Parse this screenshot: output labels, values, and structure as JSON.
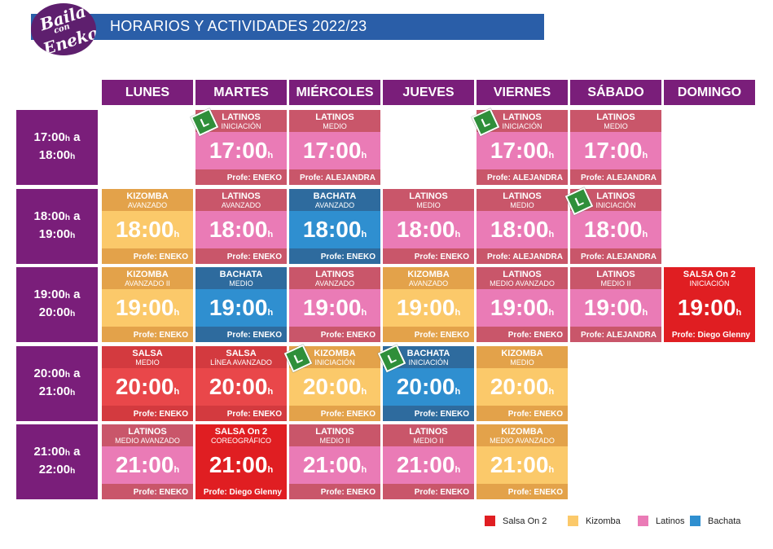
{
  "header": {
    "title": "HORARIOS Y ACTIVIDADES 2022/23",
    "logo_text": [
      "Baila",
      "con",
      "Eneko"
    ]
  },
  "days": [
    "LUNES",
    "MARTES",
    "MIÉRCOLES",
    "JUEVES",
    "VIERNES",
    "SÁBADO",
    "DOMINGO"
  ],
  "time_slots": [
    {
      "start": "17:00",
      "end": "18:00"
    },
    {
      "start": "18:00",
      "end": "19:00"
    },
    {
      "start": "19:00",
      "end": "20:00"
    },
    {
      "start": "20:00",
      "end": "21:00"
    },
    {
      "start": "21:00",
      "end": "22:00"
    }
  ],
  "labels": {
    "hour_suffix": "h",
    "a": "a"
  },
  "colors": {
    "latinos": {
      "top": "#c9566a",
      "mid": "#ea7bb6",
      "bot": "#c9566a"
    },
    "kizomba": {
      "top": "#e3a24a",
      "mid": "#fbc96a",
      "bot": "#e3a24a"
    },
    "bachata": {
      "top": "#2e6b9e",
      "mid": "#2f8fd0",
      "bot": "#2e6b9e"
    },
    "salsa": {
      "top": "#d33a3f",
      "mid": "#e9474a",
      "bot": "#d33a3f"
    },
    "salsa_on2": {
      "top": "#e01e22",
      "mid": "#e01e22",
      "bot": "#e01e22"
    },
    "header_bar": "#2a5ea8",
    "day_header": "#7a1e7a"
  },
  "classes": [
    {
      "day": 1,
      "slot": 0,
      "style": "latinos",
      "name": "LATINOS",
      "level": "INICIACIÓN",
      "time": "17:00",
      "prof": "Profe: ENEKO",
      "beginner": true
    },
    {
      "day": 2,
      "slot": 0,
      "style": "latinos",
      "name": "LATINOS",
      "level": "MEDIO",
      "time": "17:00",
      "prof": "Profe: ALEJANDRA",
      "beginner": false
    },
    {
      "day": 4,
      "slot": 0,
      "style": "latinos",
      "name": "LATINOS",
      "level": "INICIACIÓN",
      "time": "17:00",
      "prof": "Profe: ALEJANDRA",
      "beginner": true
    },
    {
      "day": 5,
      "slot": 0,
      "style": "latinos",
      "name": "LATINOS",
      "level": "MEDIO",
      "time": "17:00",
      "prof": "Profe: ALEJANDRA",
      "beginner": false
    },
    {
      "day": 0,
      "slot": 1,
      "style": "kizomba",
      "name": "KIZOMBA",
      "level": "AVANZADO",
      "time": "18:00",
      "prof": "Profe: ENEKO",
      "beginner": false
    },
    {
      "day": 1,
      "slot": 1,
      "style": "latinos",
      "name": "LATINOS",
      "level": "AVANZADO",
      "time": "18:00",
      "prof": "Profe: ENEKO",
      "beginner": false
    },
    {
      "day": 2,
      "slot": 1,
      "style": "bachata",
      "name": "BACHATA",
      "level": "AVANZADO",
      "time": "18:00",
      "prof": "Profe: ENEKO",
      "beginner": false
    },
    {
      "day": 3,
      "slot": 1,
      "style": "latinos",
      "name": "LATINOS",
      "level": "MEDIO",
      "time": "18:00",
      "prof": "Profe: ENEKO",
      "beginner": false
    },
    {
      "day": 4,
      "slot": 1,
      "style": "latinos",
      "name": "LATINOS",
      "level": "MEDIO",
      "time": "18:00",
      "prof": "Profe: ALEJANDRA",
      "beginner": false
    },
    {
      "day": 5,
      "slot": 1,
      "style": "latinos",
      "name": "LATINOS",
      "level": "INICIACIÓN",
      "time": "18:00",
      "prof": "Profe: ALEJANDRA",
      "beginner": true
    },
    {
      "day": 0,
      "slot": 2,
      "style": "kizomba",
      "name": "KIZOMBA",
      "level": "AVANZADO II",
      "time": "19:00",
      "prof": "Profe: ENEKO",
      "beginner": false
    },
    {
      "day": 1,
      "slot": 2,
      "style": "bachata",
      "name": "BACHATA",
      "level": "MEDIO",
      "time": "19:00",
      "prof": "Profe: ENEKO",
      "beginner": false
    },
    {
      "day": 2,
      "slot": 2,
      "style": "latinos",
      "name": "LATINOS",
      "level": "AVANZADO",
      "time": "19:00",
      "prof": "Profe: ENEKO",
      "beginner": false
    },
    {
      "day": 3,
      "slot": 2,
      "style": "kizomba",
      "name": "KIZOMBA",
      "level": "AVANZADO",
      "time": "19:00",
      "prof": "Profe: ENEKO",
      "beginner": false
    },
    {
      "day": 4,
      "slot": 2,
      "style": "latinos",
      "name": "LATINOS",
      "level": "MEDIO AVANZADO",
      "time": "19:00",
      "prof": "Profe: ENEKO",
      "beginner": false
    },
    {
      "day": 5,
      "slot": 2,
      "style": "latinos",
      "name": "LATINOS",
      "level": "MEDIO II",
      "time": "19:00",
      "prof": "Profe: ALEJANDRA",
      "beginner": false
    },
    {
      "day": 6,
      "slot": 2,
      "style": "salsa_on2",
      "name": "SALSA On 2",
      "level": "INICIACIÓN",
      "time": "19:00",
      "prof": "Profe: Diego Glenny",
      "beginner": false
    },
    {
      "day": 0,
      "slot": 3,
      "style": "salsa",
      "name": "SALSA",
      "level": "MEDIO",
      "time": "20:00",
      "prof": "Profe: ENEKO",
      "beginner": false
    },
    {
      "day": 1,
      "slot": 3,
      "style": "salsa",
      "name": "SALSA",
      "level": "LÍNEA AVANZADO",
      "time": "20:00",
      "prof": "Profe: ENEKO",
      "beginner": false
    },
    {
      "day": 2,
      "slot": 3,
      "style": "kizomba",
      "name": "KIZOMBA",
      "level": "INICIACIÓN",
      "time": "20:00",
      "prof": "Profe: ENEKO",
      "beginner": true
    },
    {
      "day": 3,
      "slot": 3,
      "style": "bachata",
      "name": "BACHATA",
      "level": "INICIACIÓN",
      "time": "20:00",
      "prof": "Profe: ENEKO",
      "beginner": true
    },
    {
      "day": 4,
      "slot": 3,
      "style": "kizomba",
      "name": "KIZOMBA",
      "level": "MEDIO",
      "time": "20:00",
      "prof": "Profe: ENEKO",
      "beginner": false
    },
    {
      "day": 0,
      "slot": 4,
      "style": "latinos",
      "name": "LATINOS",
      "level": "MEDIO AVANZADO",
      "time": "21:00",
      "prof": "Profe: ENEKO",
      "beginner": false
    },
    {
      "day": 1,
      "slot": 4,
      "style": "salsa_on2",
      "name": "SALSA On 2",
      "level": "COREOGRÁFICO",
      "time": "21:00",
      "prof": "Profe: Diego Glenny",
      "beginner": false
    },
    {
      "day": 2,
      "slot": 4,
      "style": "latinos",
      "name": "LATINOS",
      "level": "MEDIO II",
      "time": "21:00",
      "prof": "Profe: ENEKO",
      "beginner": false
    },
    {
      "day": 3,
      "slot": 4,
      "style": "latinos",
      "name": "LATINOS",
      "level": "MEDIO II",
      "time": "21:00",
      "prof": "Profe: ENEKO",
      "beginner": false
    },
    {
      "day": 4,
      "slot": 4,
      "style": "kizomba",
      "name": "KIZOMBA",
      "level": "MEDIO AVANZADO",
      "time": "21:00",
      "prof": "Profe: ENEKO",
      "beginner": false
    }
  ],
  "beginner_badge": "L",
  "legend": [
    {
      "label": "Salsa On 2",
      "color": "#e01e22"
    },
    {
      "label": "Kizomba",
      "color": "#fbc96a"
    },
    {
      "label": "Latinos",
      "color": "#ea7bb6"
    },
    {
      "label": "Bachata",
      "color": "#2f8fd0"
    }
  ]
}
